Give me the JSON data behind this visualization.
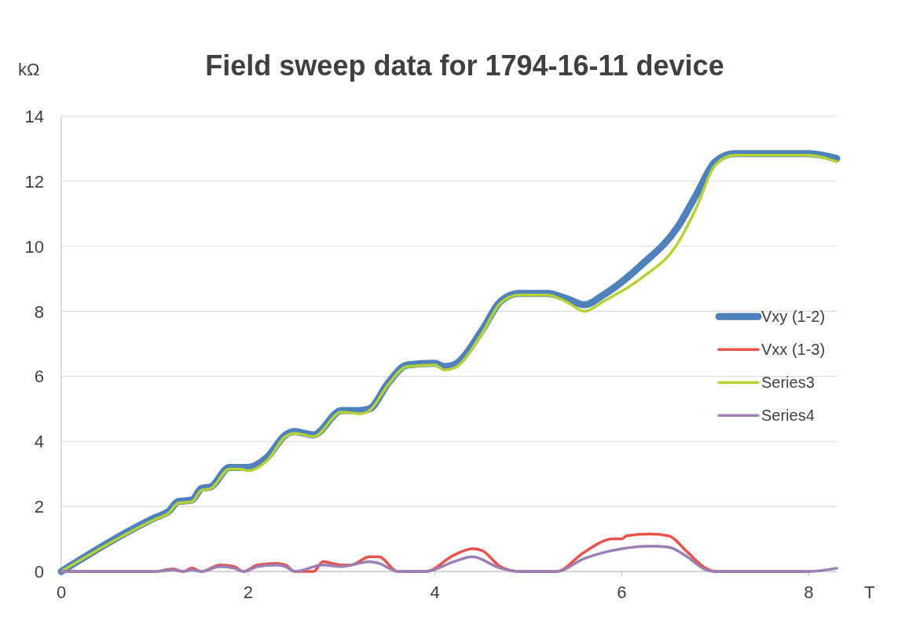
{
  "chart_data": {
    "type": "line",
    "title": "Field sweep data for 1794-16-11 device",
    "xlabel": "T",
    "ylabel": "kΩ",
    "xlim": [
      0,
      8.3
    ],
    "xticks": [
      0,
      2,
      4,
      6,
      8
    ],
    "ylim": [
      0,
      14
    ],
    "yticks": [
      0,
      2,
      4,
      6,
      8,
      10,
      12,
      14
    ],
    "grid": "y",
    "legend": "right",
    "line_style": "solid",
    "marker": "none",
    "series": [
      {
        "name": "Vxy (1-2)",
        "color": "#4f81bd",
        "x": [
          0,
          1.0,
          1.15,
          1.25,
          1.4,
          1.5,
          1.6,
          1.8,
          1.9,
          2.0,
          2.2,
          2.4,
          2.5,
          2.6,
          2.7,
          3.0,
          3.2,
          3.3,
          3.5,
          3.7,
          4.0,
          4.1,
          4.2,
          4.5,
          4.7,
          4.9,
          5.2,
          5.4,
          5.6,
          5.8,
          6.2,
          6.6,
          6.8,
          7.0,
          7.2,
          8.0,
          8.3
        ],
        "values": [
          0,
          1.65,
          1.85,
          2.15,
          2.2,
          2.55,
          2.6,
          3.2,
          3.2,
          3.2,
          3.5,
          4.2,
          4.3,
          4.25,
          4.2,
          4.95,
          4.95,
          5.0,
          5.8,
          6.35,
          6.4,
          6.3,
          6.35,
          7.4,
          8.3,
          8.55,
          8.55,
          8.4,
          8.2,
          8.5,
          9.4,
          10.6,
          11.6,
          12.6,
          12.85,
          12.85,
          12.7
        ]
      },
      {
        "name": "Vxx (1-3)",
        "color": "#e8524a",
        "x": [
          0,
          1.0,
          1.2,
          1.3,
          1.4,
          1.5,
          1.7,
          1.85,
          1.95,
          2.1,
          2.3,
          2.4,
          2.5,
          2.7,
          2.8,
          2.9,
          3.0,
          3.1,
          3.3,
          3.4,
          3.6,
          3.9,
          4.2,
          4.4,
          4.5,
          4.7,
          4.9,
          5.3,
          5.6,
          5.9,
          6.0,
          6.05,
          6.3,
          6.5,
          6.7,
          6.9,
          7.0,
          8.0
        ],
        "values": [
          0,
          0,
          0.08,
          0,
          0.1,
          0,
          0.2,
          0.15,
          0,
          0.2,
          0.25,
          0.2,
          0,
          0,
          0.3,
          0.25,
          0.2,
          0.2,
          0.45,
          0.45,
          0,
          0,
          0.5,
          0.7,
          0.65,
          0.15,
          0,
          0,
          0.6,
          1.0,
          1.0,
          1.1,
          1.15,
          1.1,
          0.6,
          0.1,
          0,
          0
        ]
      },
      {
        "name": "Series3",
        "color": "#b5d334",
        "x": [
          0,
          1.0,
          1.15,
          1.25,
          1.4,
          1.5,
          1.6,
          1.8,
          1.9,
          2.0,
          2.2,
          2.4,
          2.5,
          2.6,
          2.7,
          3.0,
          3.2,
          3.3,
          3.5,
          3.7,
          4.0,
          4.1,
          4.2,
          4.5,
          4.7,
          4.9,
          5.2,
          5.4,
          5.6,
          5.8,
          6.2,
          6.6,
          6.8,
          7.0,
          7.2,
          8.0,
          8.3
        ],
        "values": [
          0,
          1.6,
          1.8,
          2.1,
          2.15,
          2.5,
          2.55,
          3.15,
          3.15,
          3.1,
          3.4,
          4.15,
          4.25,
          4.2,
          4.15,
          4.9,
          4.85,
          4.95,
          5.75,
          6.3,
          6.35,
          6.2,
          6.25,
          7.3,
          8.25,
          8.5,
          8.5,
          8.3,
          8.0,
          8.3,
          9.0,
          10.1,
          11.2,
          12.5,
          12.8,
          12.8,
          12.6
        ]
      },
      {
        "name": "Series4",
        "color": "#9b7fb5",
        "x": [
          0,
          1.0,
          1.2,
          1.3,
          1.4,
          1.5,
          1.7,
          1.85,
          1.95,
          2.1,
          2.3,
          2.4,
          2.5,
          2.8,
          3.0,
          3.3,
          3.4,
          3.6,
          3.9,
          4.2,
          4.4,
          4.7,
          4.9,
          5.3,
          5.6,
          6.0,
          6.3,
          6.5,
          6.7,
          6.9,
          7.0,
          8.0,
          8.3
        ],
        "values": [
          0,
          0,
          0.05,
          0,
          0.05,
          0,
          0.15,
          0.1,
          0,
          0.15,
          0.2,
          0.15,
          0,
          0.2,
          0.15,
          0.3,
          0.25,
          0,
          0,
          0.3,
          0.45,
          0.1,
          0,
          0,
          0.4,
          0.7,
          0.78,
          0.75,
          0.45,
          0.05,
          0,
          0,
          0.1
        ]
      }
    ]
  }
}
